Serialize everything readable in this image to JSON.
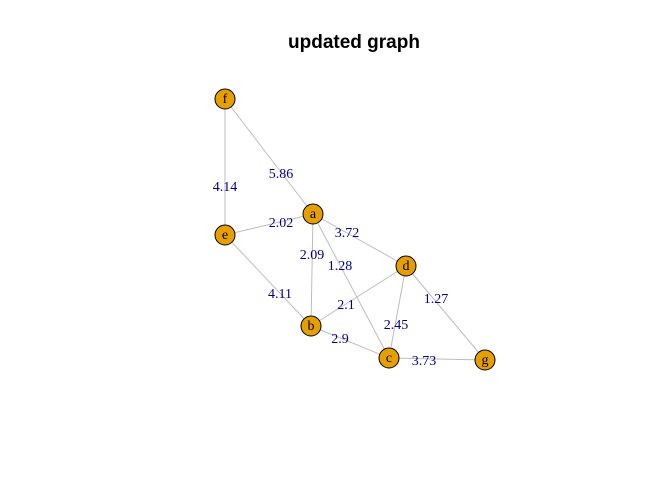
{
  "title": "updated graph",
  "colors": {
    "node_fill": "#e69f00",
    "node_stroke": "#000000",
    "edge": "#bdbdbd",
    "edge_label": "#00008b"
  },
  "graph": {
    "nodes": [
      {
        "id": "f",
        "label": "f"
      },
      {
        "id": "e",
        "label": "e"
      },
      {
        "id": "a",
        "label": "a"
      },
      {
        "id": "d",
        "label": "d"
      },
      {
        "id": "b",
        "label": "b"
      },
      {
        "id": "c",
        "label": "c"
      },
      {
        "id": "g",
        "label": "g"
      }
    ],
    "edges": [
      {
        "source": "f",
        "target": "e",
        "weight": "4.14"
      },
      {
        "source": "f",
        "target": "a",
        "weight": "5.86"
      },
      {
        "source": "e",
        "target": "a",
        "weight": "2.02"
      },
      {
        "source": "a",
        "target": "d",
        "weight": "3.72"
      },
      {
        "source": "a",
        "target": "b",
        "weight": "2.09"
      },
      {
        "source": "a",
        "target": "c",
        "weight": "1.28"
      },
      {
        "source": "e",
        "target": "b",
        "weight": "4.11"
      },
      {
        "source": "b",
        "target": "d",
        "weight": "2.1"
      },
      {
        "source": "d",
        "target": "g",
        "weight": "1.27"
      },
      {
        "source": "d",
        "target": "c",
        "weight": "2.45"
      },
      {
        "source": "b",
        "target": "c",
        "weight": "2.9"
      },
      {
        "source": "c",
        "target": "g",
        "weight": "3.73"
      }
    ]
  }
}
